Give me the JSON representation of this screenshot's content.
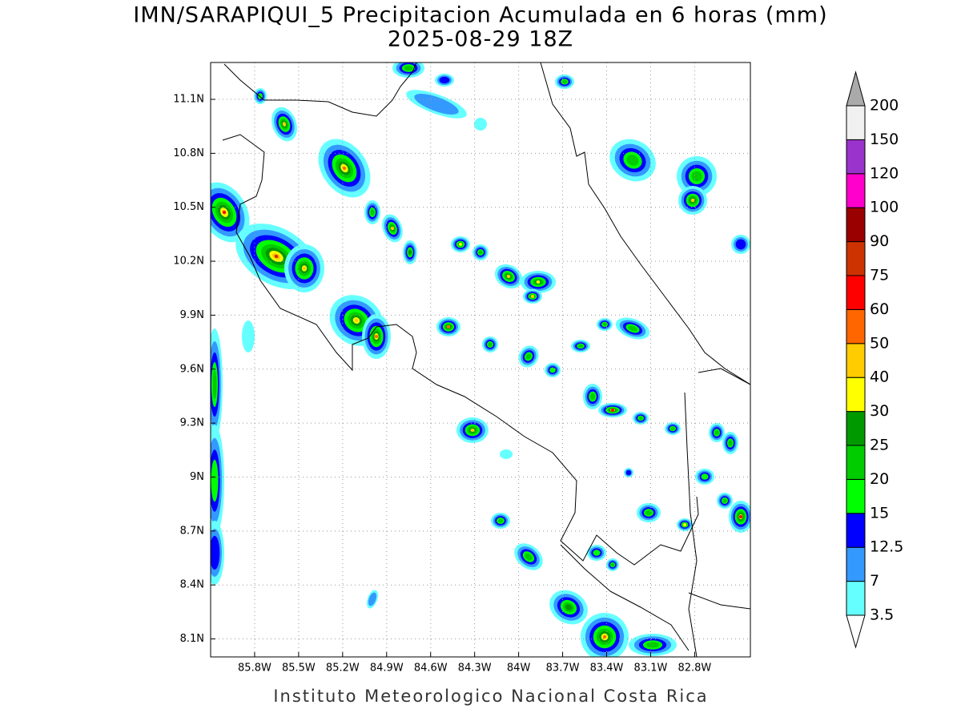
{
  "title": "IMN/SARAPIQUI_5 Precipitacion Acumulada en 6 horas (mm)",
  "subtitle": "2025-08-29 18Z",
  "footer": "Instituto Meteorologico Nacional Costa Rica",
  "map": {
    "xlim": [
      -86.1,
      -82.42
    ],
    "ylim": [
      8.0,
      11.305
    ],
    "xticks": [
      {
        "value": -85.8,
        "label": "85.8W"
      },
      {
        "value": -85.5,
        "label": "85.5W"
      },
      {
        "value": -85.2,
        "label": "85.2W"
      },
      {
        "value": -84.9,
        "label": "84.9W"
      },
      {
        "value": -84.6,
        "label": "84.6W"
      },
      {
        "value": -84.3,
        "label": "84.3W"
      },
      {
        "value": -84.0,
        "label": "84W"
      },
      {
        "value": -83.7,
        "label": "83.7W"
      },
      {
        "value": -83.4,
        "label": "83.4W"
      },
      {
        "value": -83.1,
        "label": "83.1W"
      },
      {
        "value": -82.8,
        "label": "82.8W"
      }
    ],
    "yticks": [
      {
        "value": 11.1,
        "label": "11.1N"
      },
      {
        "value": 10.8,
        "label": "10.8N"
      },
      {
        "value": 10.5,
        "label": "10.5N"
      },
      {
        "value": 10.2,
        "label": "10.2N"
      },
      {
        "value": 9.9,
        "label": "9.9N"
      },
      {
        "value": 9.6,
        "label": "9.6N"
      },
      {
        "value": 9.3,
        "label": "9.3N"
      },
      {
        "value": 9.0,
        "label": "9N"
      },
      {
        "value": 8.7,
        "label": "8.7N"
      },
      {
        "value": 8.4,
        "label": "8.4N"
      },
      {
        "value": 8.1,
        "label": "8.1N"
      }
    ],
    "grid": true
  },
  "colorbar": {
    "levels": [
      3.5,
      7,
      12.5,
      15,
      20,
      25,
      30,
      40,
      50,
      60,
      75,
      90,
      100,
      120,
      150,
      200
    ],
    "colors": [
      "#66ffff",
      "#3399ff",
      "#0000ff",
      "#00ff00",
      "#00cc00",
      "#009900",
      "#ffff00",
      "#ffcc00",
      "#ff6600",
      "#ff0000",
      "#cc3300",
      "#990000",
      "#ff00cc",
      "#9933cc",
      "#f0f0f0"
    ],
    "below_color": "#ffffff",
    "above_color": "#aaaaaa"
  }
}
